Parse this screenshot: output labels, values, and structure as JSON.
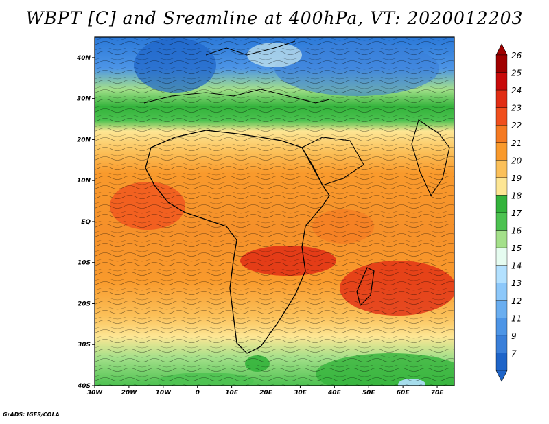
{
  "title": "WBPT [C] and Sreamline at 400hPa, VT: 2020012203",
  "credit": "GrADS: IGES/COLA",
  "map": {
    "lon_range": [
      -30,
      75
    ],
    "lat_range": [
      -40,
      45
    ],
    "lon_ticks": [
      {
        "value": -30,
        "label": "30W"
      },
      {
        "value": -20,
        "label": "20W"
      },
      {
        "value": -10,
        "label": "10W"
      },
      {
        "value": 0,
        "label": "0"
      },
      {
        "value": 10,
        "label": "10E"
      },
      {
        "value": 20,
        "label": "20E"
      },
      {
        "value": 30,
        "label": "30E"
      },
      {
        "value": 40,
        "label": "40E"
      },
      {
        "value": 50,
        "label": "50E"
      },
      {
        "value": 60,
        "label": "60E"
      },
      {
        "value": 70,
        "label": "70E"
      }
    ],
    "lat_ticks": [
      {
        "value": 40,
        "label": "40N"
      },
      {
        "value": 30,
        "label": "30N"
      },
      {
        "value": 20,
        "label": "20N"
      },
      {
        "value": 10,
        "label": "10N"
      },
      {
        "value": 0,
        "label": "EQ"
      },
      {
        "value": -10,
        "label": "10S"
      },
      {
        "value": -20,
        "label": "20S"
      },
      {
        "value": -30,
        "label": "30S"
      },
      {
        "value": -40,
        "label": "40S"
      }
    ]
  },
  "colorbar": {
    "levels": [
      {
        "label": "26",
        "color": "#a00000"
      },
      {
        "label": "25",
        "color": "#c80a0a"
      },
      {
        "label": "24",
        "color": "#e12d14"
      },
      {
        "label": "23",
        "color": "#f04f1d"
      },
      {
        "label": "22",
        "color": "#f57a22"
      },
      {
        "label": "21",
        "color": "#f99a2c"
      },
      {
        "label": "20",
        "color": "#fbc059"
      },
      {
        "label": "19",
        "color": "#fde694"
      },
      {
        "label": "18",
        "color": "#33b33b"
      },
      {
        "label": "17",
        "color": "#4cc250"
      },
      {
        "label": "16",
        "color": "#a4e08a"
      },
      {
        "label": "15",
        "color": "#e6fcf0"
      },
      {
        "label": "14",
        "color": "#b3e1ff"
      },
      {
        "label": "13",
        "color": "#8dc8fa"
      },
      {
        "label": "12",
        "color": "#6aaef0"
      },
      {
        "label": "11",
        "color": "#4d95e6"
      },
      {
        "label": "9",
        "color": "#3a7fd9"
      },
      {
        "label": "7",
        "color": "#1e64c8"
      }
    ],
    "top_color": "#a00000",
    "bottom_color": "#1e64c8"
  }
}
